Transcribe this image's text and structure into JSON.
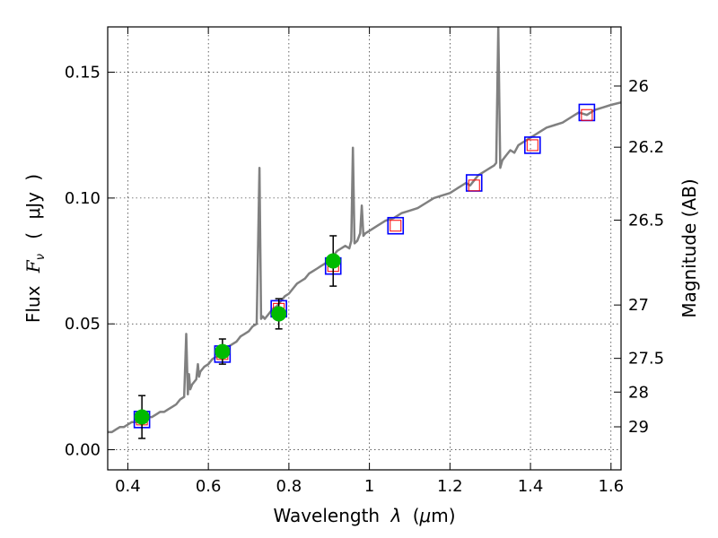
{
  "chart_data": {
    "type": "line",
    "xlabel": "Wavelength  λ (μm)",
    "ylabel": "Flux  F_ν  ( μJy )",
    "ylabel_parts": [
      "Flux",
      "F",
      "ν",
      "(",
      "μJy",
      ")"
    ],
    "xlabel_parts": [
      "Wavelength",
      "λ",
      "(",
      "μ",
      "m)"
    ],
    "y2label": "Magnitude (AB)",
    "xlim": [
      0.35,
      1.625
    ],
    "ylim": [
      -0.008,
      0.168
    ],
    "grid": true,
    "x_ticks": [
      0.4,
      0.6,
      0.8,
      1.0,
      1.2,
      1.4,
      1.6
    ],
    "x_tick_labels": [
      "0.4",
      "0.6",
      "0.8",
      "1",
      "1.2",
      "1.4",
      "1.6"
    ],
    "y_ticks": [
      0.0,
      0.05,
      0.1,
      0.15
    ],
    "y_tick_labels": [
      "0.00",
      "0.05",
      "0.10",
      "0.15"
    ],
    "mag_ticks": [
      {
        "label": "26",
        "flux": 0.1445
      },
      {
        "label": "26.2",
        "flux": 0.1202
      },
      {
        "label": "26.5",
        "flux": 0.0912
      },
      {
        "label": "27",
        "flux": 0.0575
      },
      {
        "label": "27.5",
        "flux": 0.0363
      },
      {
        "label": "28",
        "flux": 0.0229
      },
      {
        "label": "29",
        "flux": 0.0091
      }
    ],
    "colors": {
      "spectrum": "#808080",
      "observed": "#00bb00",
      "model_box": "#0000ff",
      "synthetic_box": "#ff0000",
      "errorbar": "#000000"
    },
    "series": [
      {
        "kind": "spectrum",
        "x": [
          0.35,
          0.36,
          0.37,
          0.38,
          0.39,
          0.4,
          0.41,
          0.42,
          0.43,
          0.44,
          0.45,
          0.46,
          0.47,
          0.48,
          0.49,
          0.5,
          0.51,
          0.52,
          0.53,
          0.54,
          0.545,
          0.549,
          0.552,
          0.555,
          0.56,
          0.57,
          0.574,
          0.577,
          0.58,
          0.59,
          0.6,
          0.61,
          0.62,
          0.63,
          0.64,
          0.65,
          0.66,
          0.67,
          0.68,
          0.69,
          0.7,
          0.71,
          0.72,
          0.727,
          0.731,
          0.735,
          0.74,
          0.75,
          0.76,
          0.77,
          0.78,
          0.79,
          0.8,
          0.81,
          0.82,
          0.83,
          0.84,
          0.85,
          0.86,
          0.87,
          0.88,
          0.89,
          0.9,
          0.91,
          0.92,
          0.93,
          0.94,
          0.95,
          0.955,
          0.959,
          0.963,
          0.97,
          0.977,
          0.981,
          0.985,
          0.99,
          1.0,
          1.02,
          1.04,
          1.06,
          1.08,
          1.1,
          1.12,
          1.14,
          1.16,
          1.18,
          1.2,
          1.22,
          1.24,
          1.25,
          1.26,
          1.27,
          1.28,
          1.29,
          1.3,
          1.31,
          1.315,
          1.32,
          1.325,
          1.33,
          1.34,
          1.35,
          1.36,
          1.37,
          1.38,
          1.4,
          1.42,
          1.44,
          1.46,
          1.48,
          1.5,
          1.52,
          1.54,
          1.56,
          1.58,
          1.6,
          1.625
        ],
        "y": [
          0.007,
          0.007,
          0.008,
          0.009,
          0.009,
          0.01,
          0.011,
          0.011,
          0.012,
          0.012,
          0.013,
          0.013,
          0.014,
          0.015,
          0.015,
          0.016,
          0.017,
          0.018,
          0.02,
          0.021,
          0.046,
          0.022,
          0.03,
          0.024,
          0.026,
          0.028,
          0.034,
          0.029,
          0.031,
          0.033,
          0.034,
          0.036,
          0.037,
          0.038,
          0.04,
          0.041,
          0.042,
          0.043,
          0.045,
          0.046,
          0.047,
          0.049,
          0.05,
          0.112,
          0.052,
          0.053,
          0.052,
          0.054,
          0.056,
          0.057,
          0.059,
          0.061,
          0.062,
          0.064,
          0.066,
          0.067,
          0.068,
          0.07,
          0.071,
          0.072,
          0.073,
          0.074,
          0.075,
          0.077,
          0.079,
          0.08,
          0.081,
          0.08,
          0.083,
          0.12,
          0.082,
          0.083,
          0.086,
          0.097,
          0.085,
          0.086,
          0.087,
          0.089,
          0.091,
          0.092,
          0.094,
          0.095,
          0.096,
          0.098,
          0.1,
          0.101,
          0.102,
          0.104,
          0.106,
          0.105,
          0.107,
          0.109,
          0.11,
          0.111,
          0.112,
          0.113,
          0.114,
          0.168,
          0.112,
          0.115,
          0.117,
          0.119,
          0.118,
          0.121,
          0.122,
          0.124,
          0.126,
          0.128,
          0.129,
          0.13,
          0.132,
          0.134,
          0.133,
          0.135,
          0.136,
          0.137,
          0.138
        ]
      },
      {
        "kind": "observed",
        "x": [
          0.435,
          0.635,
          0.775,
          0.91
        ],
        "y": [
          0.013,
          0.039,
          0.054,
          0.075
        ],
        "yerr": [
          0.0085,
          0.005,
          0.006,
          0.01
        ]
      },
      {
        "kind": "model",
        "x": [
          0.435,
          0.635,
          0.775,
          0.91,
          1.065,
          1.26,
          1.405,
          1.54
        ],
        "y": [
          0.012,
          0.038,
          0.056,
          0.073,
          0.089,
          0.106,
          0.121,
          0.134
        ]
      },
      {
        "kind": "synthetic",
        "x": [
          0.435,
          0.635,
          0.775,
          0.91,
          1.065,
          1.26,
          1.405,
          1.54
        ],
        "y": [
          0.012,
          0.038,
          0.056,
          0.073,
          0.089,
          0.105,
          0.121,
          0.133
        ]
      }
    ]
  }
}
